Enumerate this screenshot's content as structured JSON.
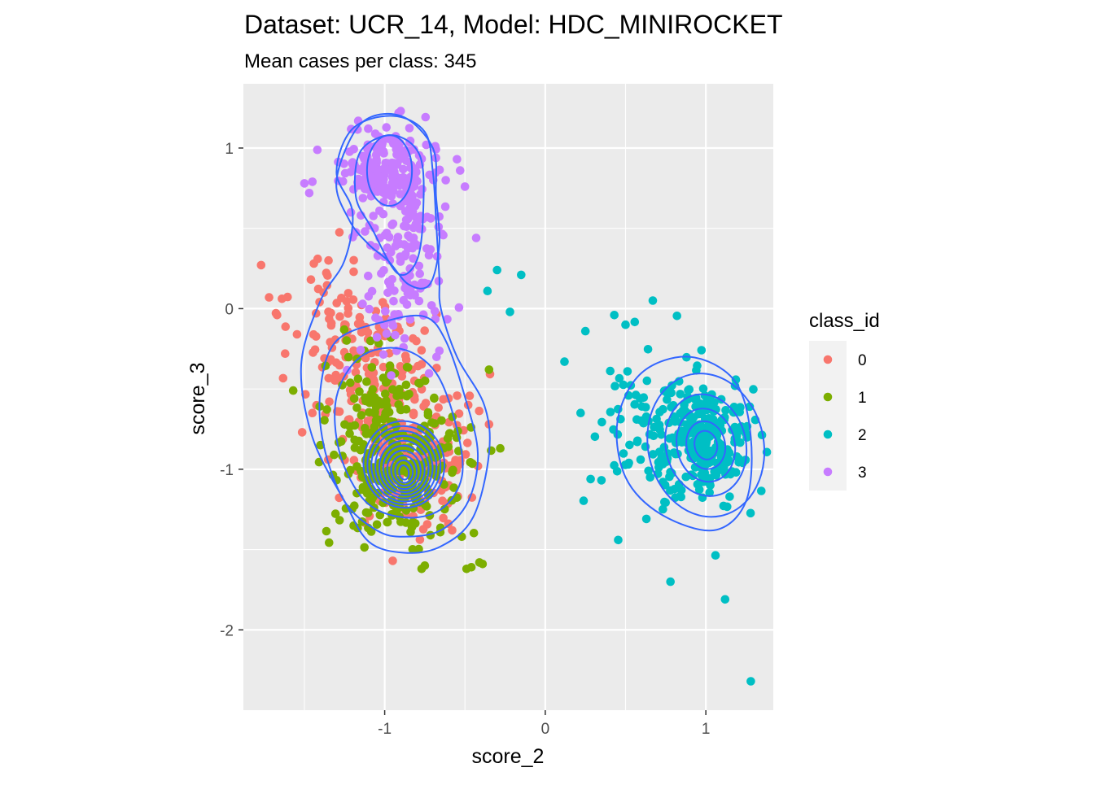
{
  "chart_data": {
    "type": "scatter",
    "title": "Dataset: UCR_14, Model: HDC_MINIROCKET",
    "subtitle": "Mean cases per class: 345",
    "xlabel": "score_2",
    "ylabel": "score_3",
    "xlim": [
      -1.88,
      1.42
    ],
    "ylim": [
      -2.5,
      1.4
    ],
    "x_ticks": [
      -1,
      0,
      1
    ],
    "x_tick_labels": [
      "-1",
      "0",
      "1"
    ],
    "y_ticks": [
      -2,
      -1,
      0,
      1
    ],
    "y_tick_labels": [
      "-2",
      "-1",
      "0",
      "1"
    ],
    "grid": true,
    "panel_background": "#ebebeb",
    "grid_color": "#ffffff",
    "legend": {
      "title": "class_id",
      "placement": "right",
      "entries": [
        "0",
        "1",
        "2",
        "3"
      ]
    },
    "density_contours": true,
    "contour_color": "#3366ff",
    "series": [
      {
        "name": "0",
        "color": "#f8766d",
        "clusters": [
          {
            "mean": [
              -1.05,
              -0.45
            ],
            "sd": [
              0.24,
              0.24
            ],
            "rho": -0.35,
            "n": 160
          },
          {
            "mean": [
              -0.85,
              -0.98
            ],
            "sd": [
              0.2,
              0.2
            ],
            "rho": 0.1,
            "n": 140
          },
          {
            "mean": [
              -1.3,
              -0.1
            ],
            "sd": [
              0.18,
              0.22
            ],
            "rho": 0.0,
            "n": 45
          }
        ],
        "extra_points": [
          [
            -1.72,
            0.07
          ],
          [
            -1.67,
            -0.04
          ],
          [
            -1.62,
            -0.28
          ],
          [
            -1.35,
            0.3
          ],
          [
            -1.38,
            0.1
          ],
          [
            -0.48,
            -0.6
          ],
          [
            -0.95,
            -1.57
          ],
          [
            -1.45,
            -0.65
          ],
          [
            -0.58,
            -1.38
          ],
          [
            -0.35,
            -0.72
          ]
        ]
      },
      {
        "name": "1",
        "color": "#7cae00",
        "clusters": [
          {
            "mean": [
              -0.92,
              -1.02
            ],
            "sd": [
              0.2,
              0.2
            ],
            "rho": 0.05,
            "n": 250
          },
          {
            "mean": [
              -1.0,
              -0.6
            ],
            "sd": [
              0.18,
              0.18
            ],
            "rho": 0.0,
            "n": 95
          }
        ],
        "extra_points": [
          [
            -1.57,
            -0.51
          ],
          [
            -0.77,
            -1.62
          ],
          [
            -0.75,
            -1.6
          ],
          [
            -0.49,
            -1.62
          ],
          [
            -0.46,
            -1.61
          ],
          [
            -0.39,
            -1.59
          ],
          [
            -0.41,
            -1.58
          ],
          [
            -0.28,
            -0.87
          ],
          [
            -0.35,
            -0.38
          ],
          [
            -1.4,
            -0.85
          ],
          [
            -0.52,
            -1.42
          ]
        ]
      },
      {
        "name": "2",
        "color": "#00bfc4",
        "clusters": [
          {
            "mean": [
              1.0,
              -0.82
            ],
            "sd": [
              0.12,
              0.18
            ],
            "rho": -0.1,
            "n": 230
          },
          {
            "mean": [
              0.72,
              -0.78
            ],
            "sd": [
              0.2,
              0.26
            ],
            "rho": 0.0,
            "n": 115
          }
        ],
        "extra_points": [
          [
            0.12,
            -0.33
          ],
          [
            0.78,
            -1.7
          ],
          [
            1.12,
            -1.81
          ],
          [
            1.28,
            -2.32
          ],
          [
            -0.15,
            0.21
          ],
          [
            -0.3,
            0.24
          ],
          [
            -0.36,
            0.11
          ],
          [
            -0.22,
            -0.02
          ],
          [
            0.43,
            -0.04
          ],
          [
            0.67,
            0.05
          ],
          [
            0.25,
            -0.14
          ],
          [
            0.22,
            -0.65
          ],
          [
            0.5,
            -0.1
          ]
        ]
      },
      {
        "name": "3",
        "color": "#c77cff",
        "clusters": [
          {
            "mean": [
              -0.98,
              0.85
            ],
            "sd": [
              0.14,
              0.13
            ],
            "rho": 0.0,
            "n": 200
          },
          {
            "mean": [
              -0.88,
              0.35
            ],
            "sd": [
              0.13,
              0.28
            ],
            "rho": 0.0,
            "n": 125
          },
          {
            "mean": [
              -0.85,
              -0.15
            ],
            "sd": [
              0.14,
              0.18
            ],
            "rho": 0.0,
            "n": 20
          }
        ],
        "extra_points": [
          [
            -0.9,
            1.23
          ],
          [
            -1.45,
            0.79
          ],
          [
            -1.5,
            0.78
          ],
          [
            -1.47,
            0.72
          ],
          [
            -0.43,
            0.44
          ],
          [
            -0.53,
            0.86
          ],
          [
            -0.5,
            0.76
          ],
          [
            -0.62,
            0.8
          ],
          [
            -0.55,
            0.93
          ]
        ]
      }
    ],
    "contours": {
      "left_group": {
        "center": [
          -0.88,
          -1.02
        ],
        "inner_rx": [
          0.05,
          0.42
        ],
        "inner_ry": [
          0.06,
          0.36
        ],
        "levels": 10,
        "outer_shell": [
          [
            -0.88,
            -1.52
          ],
          [
            -0.65,
            -1.48
          ],
          [
            -0.45,
            -1.3
          ],
          [
            -0.35,
            -0.9
          ],
          [
            -0.38,
            -0.6
          ],
          [
            -0.55,
            -0.3
          ],
          [
            -0.65,
            0.0
          ],
          [
            -0.66,
            0.2
          ],
          [
            -0.68,
            0.55
          ],
          [
            -0.7,
            0.85
          ],
          [
            -0.75,
            1.1
          ],
          [
            -0.95,
            1.2
          ],
          [
            -1.2,
            1.12
          ],
          [
            -1.3,
            0.85
          ],
          [
            -1.2,
            0.6
          ],
          [
            -1.25,
            0.3
          ],
          [
            -1.4,
            0.05
          ],
          [
            -1.52,
            -0.35
          ],
          [
            -1.45,
            -0.8
          ],
          [
            -1.25,
            -1.2
          ],
          [
            -1.1,
            -1.45
          ]
        ],
        "middle_shell": [
          [
            -0.88,
            -1.42
          ],
          [
            -0.65,
            -1.38
          ],
          [
            -0.48,
            -1.2
          ],
          [
            -0.42,
            -0.9
          ],
          [
            -0.5,
            -0.55
          ],
          [
            -0.62,
            -0.2
          ],
          [
            -0.75,
            -0.05
          ],
          [
            -1.0,
            -0.08
          ],
          [
            -1.3,
            -0.2
          ],
          [
            -1.4,
            -0.5
          ],
          [
            -1.38,
            -0.85
          ],
          [
            -1.25,
            -1.2
          ],
          [
            -1.05,
            -1.38
          ]
        ],
        "inner_shell": [
          [
            -0.88,
            -1.3
          ],
          [
            -0.65,
            -1.25
          ],
          [
            -0.52,
            -1.05
          ],
          [
            -0.55,
            -0.75
          ],
          [
            -0.68,
            -0.4
          ],
          [
            -0.9,
            -0.25
          ],
          [
            -1.15,
            -0.3
          ],
          [
            -1.3,
            -0.55
          ],
          [
            -1.28,
            -0.9
          ],
          [
            -1.12,
            -1.2
          ]
        ]
      },
      "top_group": {
        "outer_shell": [
          [
            -0.98,
            0.3
          ],
          [
            -0.85,
            0.15
          ],
          [
            -0.72,
            0.15
          ],
          [
            -0.66,
            0.4
          ],
          [
            -0.68,
            0.7
          ],
          [
            -0.7,
            1.0
          ],
          [
            -0.9,
            1.2
          ],
          [
            -1.15,
            1.15
          ],
          [
            -1.3,
            0.8
          ],
          [
            -1.22,
            0.55
          ],
          [
            -1.1,
            0.4
          ]
        ],
        "mid_shell": [
          [
            -0.92,
            0.22
          ],
          [
            -0.8,
            0.3
          ],
          [
            -0.76,
            0.6
          ],
          [
            -0.78,
            0.95
          ],
          [
            -0.95,
            1.08
          ],
          [
            -1.15,
            0.98
          ],
          [
            -1.18,
            0.7
          ],
          [
            -1.08,
            0.5
          ]
        ],
        "inner_ellipse": {
          "center": [
            -0.97,
            0.86
          ],
          "rx": 0.14,
          "ry": 0.22
        }
      },
      "right_group": {
        "center": [
          1.0,
          -0.85
        ],
        "rx": [
          0.07,
          0.12,
          0.18,
          0.25,
          0.36
        ],
        "ry": [
          0.09,
          0.15,
          0.23,
          0.32,
          0.45
        ],
        "outer_shell": [
          [
            1.05,
            -1.38
          ],
          [
            1.25,
            -1.2
          ],
          [
            1.28,
            -0.8
          ],
          [
            1.18,
            -0.45
          ],
          [
            0.9,
            -0.3
          ],
          [
            0.6,
            -0.4
          ],
          [
            0.45,
            -0.7
          ],
          [
            0.5,
            -1.05
          ],
          [
            0.72,
            -1.28
          ]
        ]
      }
    }
  }
}
